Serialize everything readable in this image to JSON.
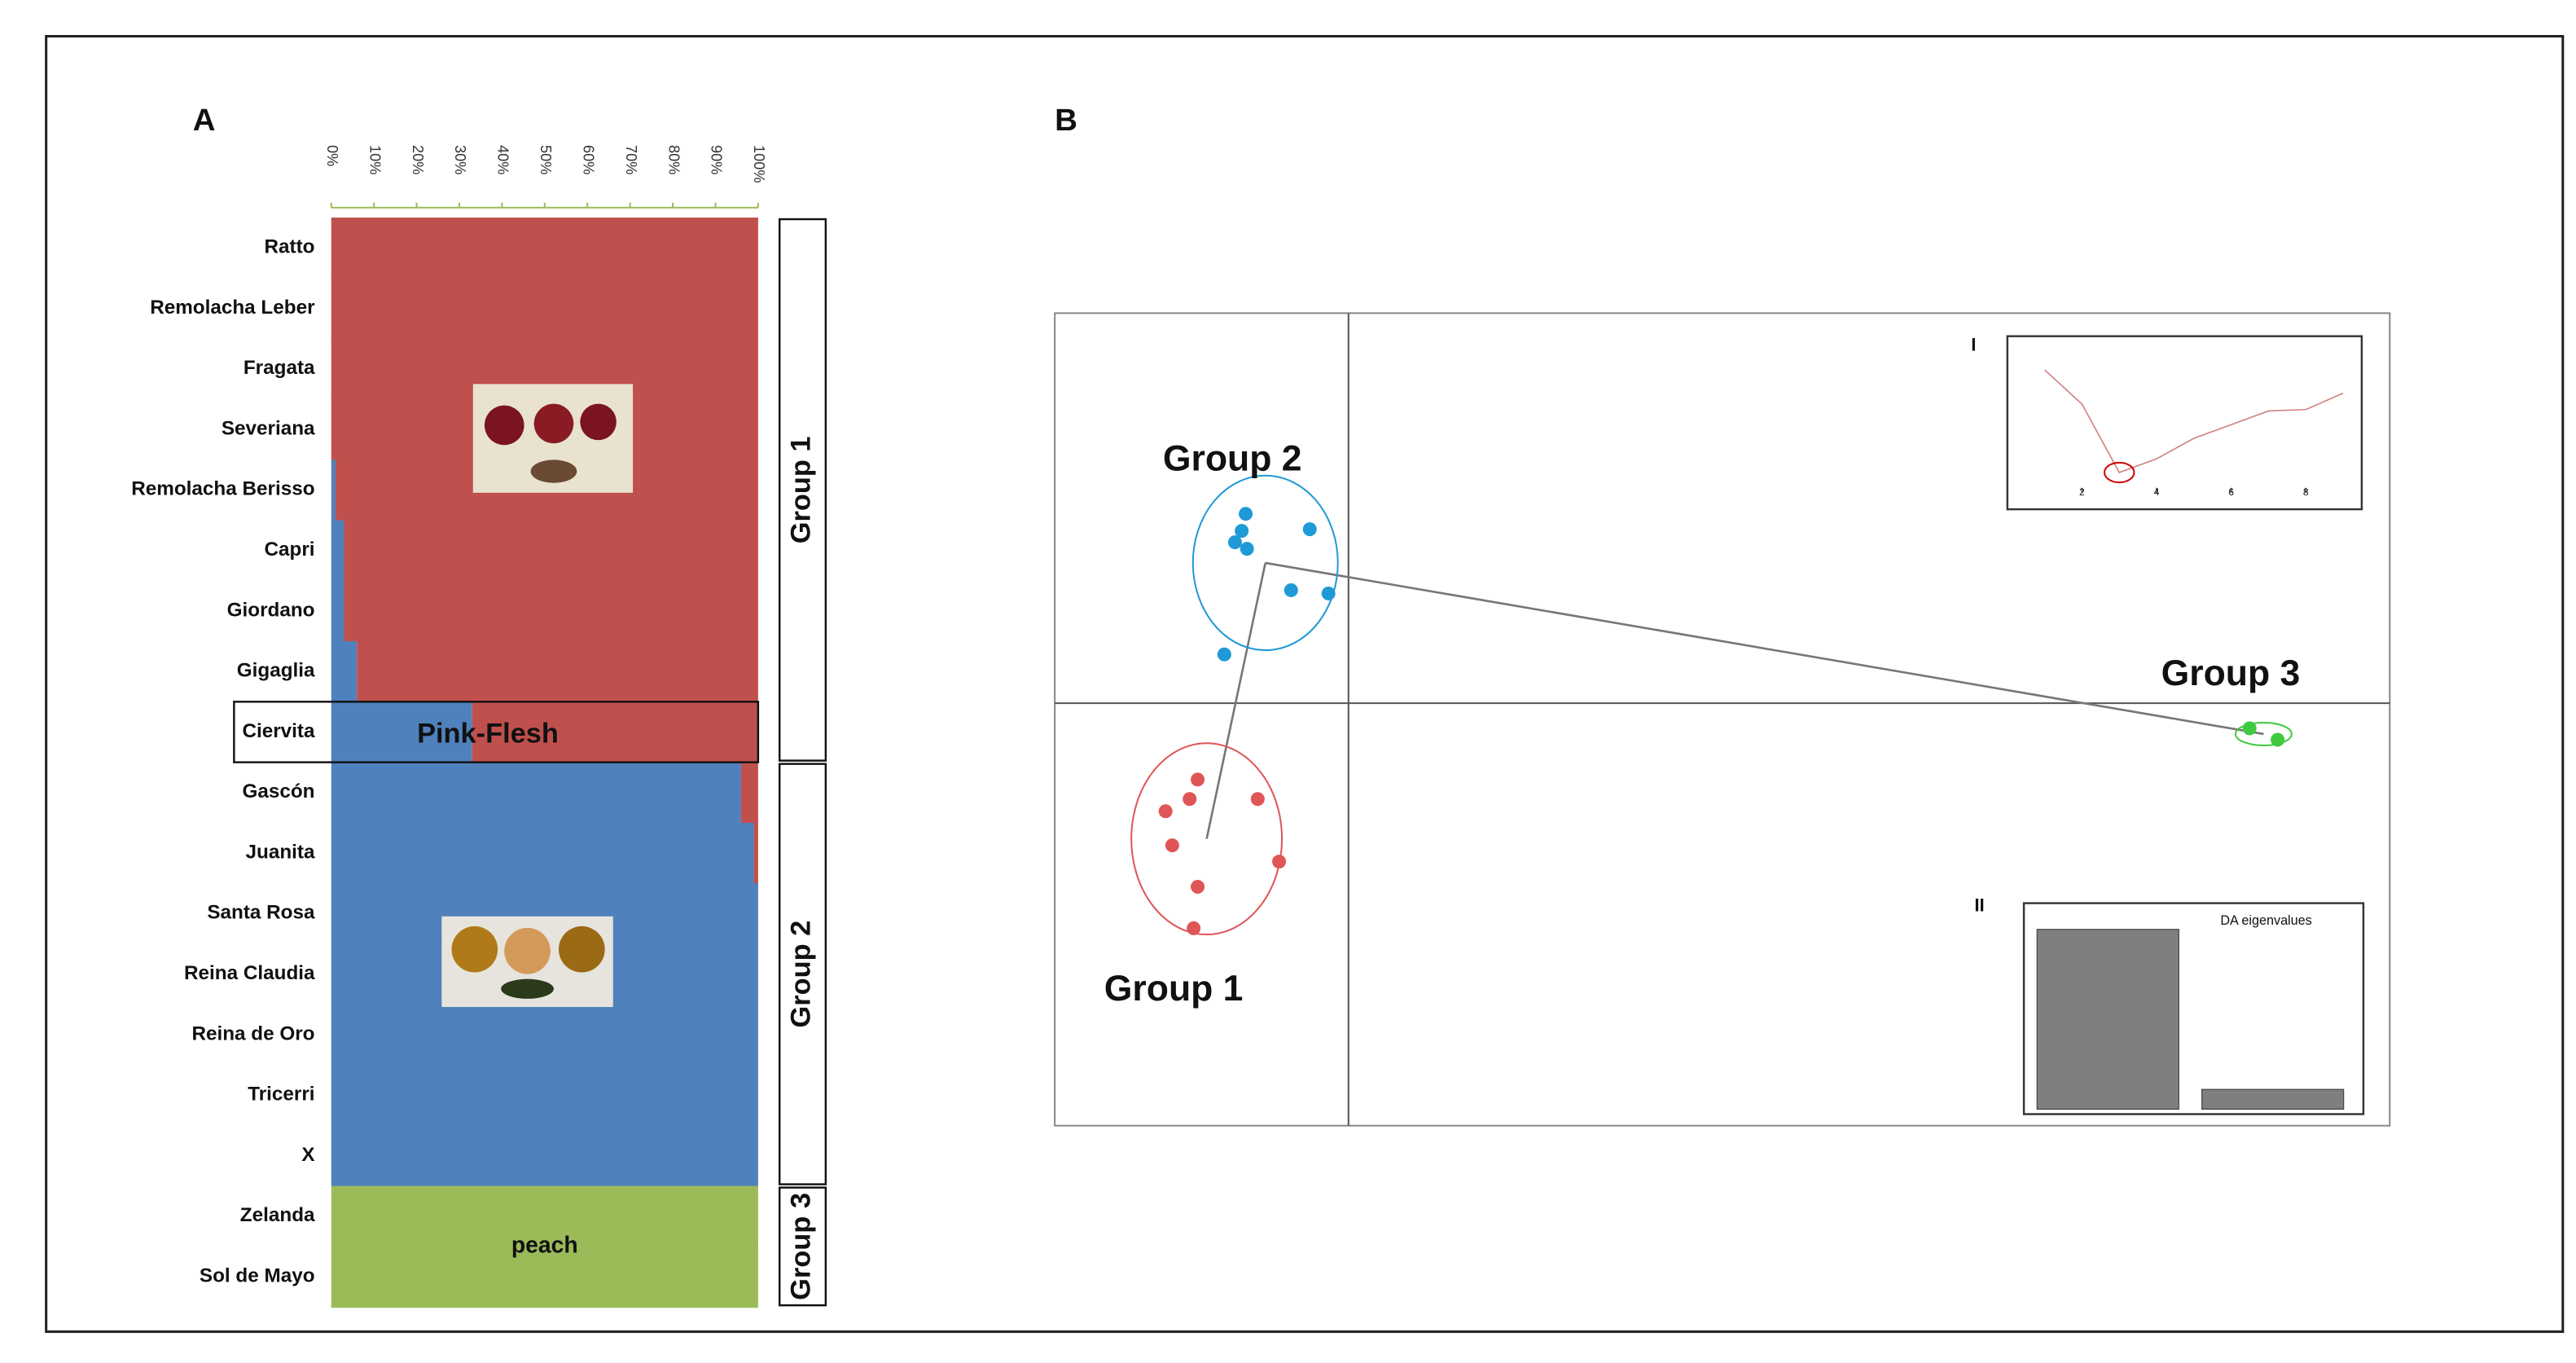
{
  "chart_data": [
    {
      "type": "bar",
      "orientation": "horizontal",
      "stacked": true,
      "label": "A",
      "categories": [
        "Ratto",
        "Remolacha Leber",
        "Fragata",
        "Severiana",
        "Remolacha Berisso",
        "Capri",
        "Giordano",
        "Gigaglia",
        "Ciervita",
        "Gascón",
        "Juanita",
        "Santa Rosa",
        "Reina Claudia",
        "Reina de Oro",
        "Tricerri",
        "X",
        "Zelanda",
        "Sol de Mayo"
      ],
      "series": [
        {
          "color": "#4f81bd",
          "values": [
            0,
            0,
            0,
            0,
            1,
            3,
            3,
            6,
            33,
            96,
            99,
            100,
            100,
            100,
            100,
            100,
            0,
            0
          ]
        },
        {
          "color": "#c0504d",
          "values": [
            100,
            100,
            100,
            100,
            99,
            97,
            97,
            94,
            67,
            4,
            1,
            0,
            0,
            0,
            0,
            0,
            0,
            0
          ]
        },
        {
          "color": "#9bbb59",
          "values": [
            0,
            0,
            0,
            0,
            0,
            0,
            0,
            0,
            0,
            0,
            0,
            0,
            0,
            0,
            0,
            0,
            100,
            100
          ]
        }
      ],
      "xlim": [
        0,
        100
      ],
      "xticks": [
        {
          "value": 0,
          "label": "0%"
        },
        {
          "value": 10,
          "label": "10%"
        },
        {
          "value": 20,
          "label": "20%"
        },
        {
          "value": 30,
          "label": "30%"
        },
        {
          "value": 40,
          "label": "40%"
        },
        {
          "value": 50,
          "label": "50%"
        },
        {
          "value": 60,
          "label": "60%"
        },
        {
          "value": 70,
          "label": "70%"
        },
        {
          "value": 80,
          "label": "80%"
        },
        {
          "value": 90,
          "label": "90%"
        },
        {
          "value": 100,
          "label": "100%"
        }
      ],
      "highlight": {
        "category": 8,
        "label": "Pink-Flesh"
      },
      "fill_label": {
        "category": 16,
        "label": "peach"
      },
      "groups": [
        {
          "label": "Group 1",
          "span": [
            0,
            8
          ]
        },
        {
          "label": "Group 2",
          "span": [
            9,
            15
          ]
        },
        {
          "label": "Group 3",
          "span": [
            16,
            17
          ]
        }
      ]
    },
    {
      "type": "scatter",
      "label": "B",
      "xlim": [
        -2.2,
        7.8
      ],
      "ylim": [
        -5.2,
        4.8
      ],
      "series": [
        {
          "label": "Group 2",
          "label_side": "above",
          "color": "#1f9ad6",
          "x": [
            -0.77,
            -0.8,
            -0.76,
            -0.85,
            -0.29,
            -0.43,
            -0.15,
            -0.93
          ],
          "y": [
            2.33,
            2.12,
            1.9,
            1.98,
            2.14,
            1.39,
            1.35,
            0.6
          ]
        },
        {
          "label": "Group 1",
          "label_side": "below",
          "color": "#e05555",
          "x": [
            -1.13,
            -1.37,
            -1.19,
            -0.68,
            -1.32,
            -0.52,
            -1.13,
            -1.16
          ],
          "y": [
            -0.94,
            -1.33,
            -1.18,
            -1.18,
            -1.75,
            -1.95,
            -2.26,
            -2.77
          ]
        },
        {
          "label": "Group 3",
          "label_side": "above",
          "color": "#3fc93f",
          "x": [
            6.75,
            6.96
          ],
          "y": [
            -0.31,
            -0.45
          ]
        }
      ]
    },
    {
      "type": "line",
      "label": "I",
      "color": "#d08080",
      "x": [
        1,
        2,
        3,
        4,
        5,
        6,
        7,
        8,
        9
      ],
      "values": [
        8.5,
        6,
        1,
        2,
        3.5,
        4.5,
        5.5,
        5.6,
        6.8
      ],
      "xlim": [
        0,
        9.5
      ],
      "ylim": [
        0,
        10
      ],
      "xticks": [
        2,
        4,
        6,
        8
      ]
    },
    {
      "type": "bar",
      "label": "II",
      "title": "DA eigenvalues",
      "color": "#7f7f7f",
      "values": [
        1,
        0.11
      ],
      "ylim": [
        0,
        1.1
      ]
    }
  ]
}
